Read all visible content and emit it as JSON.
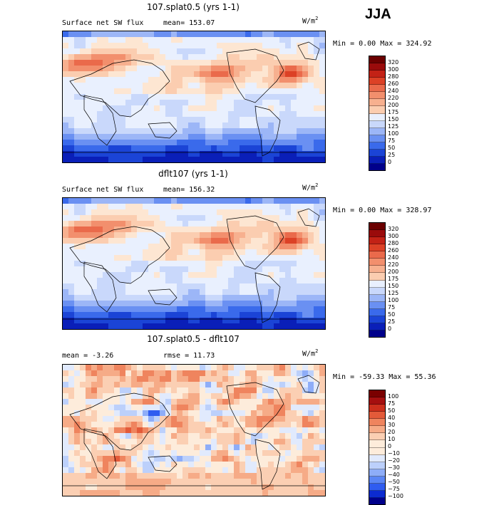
{
  "season": "JJA",
  "palette": {
    "seq": [
      "#00008b",
      "#0a1fb8",
      "#1b44d6",
      "#3a6aeb",
      "#6a90f2",
      "#9cb6f7",
      "#c9d8fb",
      "#e9f0fe",
      "#fde6d2",
      "#fbcdb0",
      "#f7b08f",
      "#f28f6d",
      "#ea6a4b",
      "#dc4126",
      "#c32216",
      "#9a0b0b",
      "#6b0000"
    ],
    "div": [
      "#00008b",
      "#0c2bd0",
      "#2f5cf0",
      "#5b86f5",
      "#8eadf8",
      "#bcd0fb",
      "#e1eafd",
      "#fdecdb",
      "#fbcfb3",
      "#f6ab87",
      "#ef845e",
      "#e35a39",
      "#cc2f1c",
      "#a50f0f",
      "#7a0000"
    ]
  },
  "charts": [
    {
      "id": "top",
      "title": "107.splat0.5 (yrs 1-1)",
      "field": "Surface net SW flux",
      "stat_text": "mean= 153.07",
      "units": "W/m",
      "units_sup": "2",
      "minmax": "Min =    0.00 Max = 324.92",
      "levels": [
        "320",
        "300",
        "280",
        "260",
        "240",
        "220",
        "200",
        "175",
        "150",
        "125",
        "100",
        "75",
        "50",
        "25",
        "0"
      ],
      "palette": "seq"
    },
    {
      "id": "mid",
      "title": "dflt107 (yrs 1-1)",
      "field": "Surface net SW flux",
      "stat_text": "mean= 156.32",
      "units": "W/m",
      "units_sup": "2",
      "minmax": "Min =    0.00 Max = 328.97",
      "levels": [
        "320",
        "300",
        "280",
        "260",
        "240",
        "220",
        "200",
        "175",
        "150",
        "125",
        "100",
        "75",
        "50",
        "25",
        "0"
      ],
      "palette": "seq"
    },
    {
      "id": "bot",
      "title": "107.splat0.5 - dflt107",
      "mean_text": "mean =  -3.26",
      "rmse_text": "rmse =  11.73",
      "units": "W/m",
      "units_sup": "2",
      "minmax": "Min = -59.33 Max =  55.36",
      "levels": [
        "100",
        "75",
        "50",
        "40",
        "30",
        "20",
        "10",
        "0",
        "−10",
        "−20",
        "−30",
        "−40",
        "−50",
        "−75",
        "−100"
      ],
      "palette": "div"
    }
  ],
  "chart_data": [
    {
      "type": "heatmap",
      "title": "107.splat0.5 (yrs 1-1)",
      "variable": "Surface net SW flux",
      "units": "W/m2",
      "mean": 153.07,
      "min": 0.0,
      "max": 324.92,
      "colorbar_levels": [
        0,
        25,
        50,
        75,
        100,
        125,
        150,
        175,
        200,
        220,
        240,
        260,
        280,
        300,
        320
      ]
    },
    {
      "type": "heatmap",
      "title": "dflt107 (yrs 1-1)",
      "variable": "Surface net SW flux",
      "units": "W/m2",
      "mean": 156.32,
      "min": 0.0,
      "max": 328.97,
      "colorbar_levels": [
        0,
        25,
        50,
        75,
        100,
        125,
        150,
        175,
        200,
        220,
        240,
        260,
        280,
        300,
        320
      ]
    },
    {
      "type": "heatmap",
      "title": "107.splat0.5 - dflt107",
      "units": "W/m2",
      "mean": -3.26,
      "rmse": 11.73,
      "min": -59.33,
      "max": 55.36,
      "colorbar_levels": [
        -100,
        -75,
        -50,
        -40,
        -30,
        -20,
        -10,
        0,
        10,
        20,
        30,
        40,
        50,
        75,
        100
      ]
    }
  ]
}
